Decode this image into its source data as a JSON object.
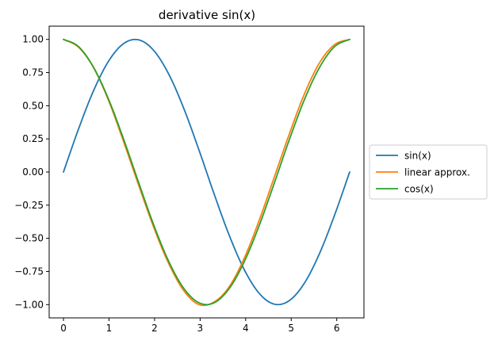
{
  "chart_data": {
    "type": "line",
    "title": "derivative sin(x)",
    "xlabel": "",
    "ylabel": "",
    "xlim": [
      -0.3142,
      6.5973
    ],
    "ylim": [
      -1.1,
      1.1
    ],
    "x_ticks": [
      0,
      1,
      2,
      3,
      4,
      5,
      6
    ],
    "x_tick_labels": [
      "0",
      "1",
      "2",
      "3",
      "4",
      "5",
      "6"
    ],
    "y_ticks": [
      -1.0,
      -0.75,
      -0.5,
      -0.25,
      0.0,
      0.25,
      0.5,
      0.75,
      1.0
    ],
    "y_tick_labels": [
      "−1.00",
      "−0.75",
      "−0.50",
      "−0.25",
      "0.00",
      "0.25",
      "0.50",
      "0.75",
      "1.00"
    ],
    "grid": false,
    "legend_position": "right, outside plot",
    "x": [
      0,
      0.3307,
      0.6614,
      0.9921,
      1.3228,
      1.6535,
      1.9842,
      2.3149,
      2.6456,
      2.9762,
      3.3069,
      3.6376,
      3.9683,
      4.299,
      4.6297,
      4.9604,
      5.2911,
      5.6218,
      5.9525,
      6.2832
    ],
    "series": [
      {
        "name": "sin(x)",
        "color": "#1f77b4",
        "values": [
          0,
          0.3247,
          0.6142,
          0.8372,
          0.9694,
          0.9966,
          0.9158,
          0.7357,
          0.4759,
          0.1646,
          -0.1646,
          -0.4759,
          -0.7357,
          -0.9158,
          -0.9966,
          -0.9694,
          -0.8372,
          -0.6142,
          -0.3247,
          0
        ]
      },
      {
        "name": "linear approx.",
        "color": "#ff7f0e",
        "values": [
          1.0,
          0.9412,
          0.7867,
          0.5376,
          0.2265,
          -0.1023,
          -0.4195,
          -0.6933,
          -0.8967,
          -1.0,
          -0.9807,
          -0.8662,
          -0.6503,
          -0.363,
          -0.0374,
          0.2884,
          0.5896,
          0.8238,
          0.961,
          1.0
        ]
      },
      {
        "name": "cos(x)",
        "color": "#2ca02c",
        "values": [
          1.0,
          0.9458,
          0.7891,
          0.5469,
          0.2455,
          -0.0826,
          -0.4017,
          -0.6773,
          -0.8795,
          -0.9864,
          -0.9864,
          -0.8795,
          -0.6773,
          -0.4017,
          -0.0826,
          0.2455,
          0.5469,
          0.7891,
          0.9458,
          1.0
        ]
      }
    ]
  }
}
